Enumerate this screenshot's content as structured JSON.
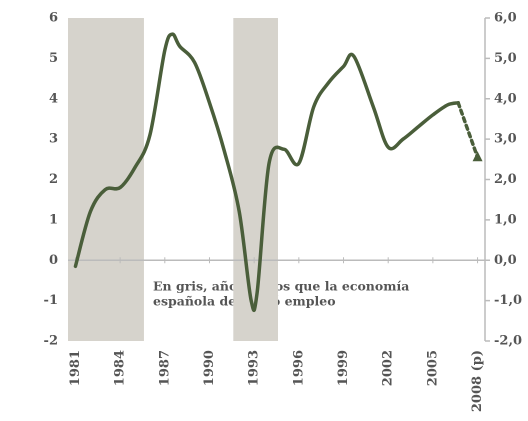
{
  "chart_data": {
    "type": "line",
    "annotation": [
      "En gris, años en los que la economía",
      "española destruyó empleo"
    ],
    "x": [
      1981,
      1982,
      1983,
      1984,
      1985,
      1986,
      1987,
      1987.5,
      1988,
      1989,
      1990,
      1991,
      1992,
      1992.8,
      1993.2,
      1994,
      1995,
      1996,
      1997,
      1998,
      1999,
      1999.7,
      2001,
      2002,
      2003,
      2004,
      2005,
      2006,
      2006.7,
      2008
    ],
    "series": [
      {
        "color": "#4a5e3a",
        "values": [
          -0.15,
          1.2,
          1.75,
          1.8,
          2.3,
          3.1,
          5.2,
          5.6,
          5.3,
          4.9,
          3.9,
          2.7,
          1.2,
          -1.0,
          -0.8,
          2.4,
          2.75,
          2.4,
          3.8,
          4.4,
          4.8,
          5.05,
          3.8,
          2.8,
          3.0,
          3.3,
          3.6,
          3.85,
          3.9,
          null
        ]
      },
      {
        "color": "#4a5e3a",
        "dashed": true,
        "values": [
          null,
          null,
          null,
          null,
          null,
          null,
          null,
          null,
          null,
          null,
          null,
          null,
          null,
          null,
          null,
          null,
          null,
          null,
          null,
          null,
          null,
          null,
          null,
          null,
          null,
          null,
          null,
          null,
          3.9,
          2.55
        ]
      }
    ],
    "shaded": [
      [
        1980.5,
        1985.6
      ],
      [
        1991.6,
        1994.6
      ]
    ],
    "shade_color": "#d6d3cc",
    "xlim": [
      1980.5,
      2008.5
    ],
    "xticks": [
      1981,
      1984,
      1987,
      1990,
      1993,
      1996,
      1999,
      2002,
      2005,
      {
        "value": 2008,
        "label": "2008 (p)"
      }
    ],
    "ylim": [
      -2,
      6
    ],
    "yticks": [
      -2,
      -1,
      0,
      1,
      2,
      3,
      4,
      5,
      6
    ],
    "y2lim": [
      -2,
      6
    ],
    "y2ticks": [
      {
        "value": -2,
        "label": "-2,0"
      },
      {
        "value": -1,
        "label": "-1,0"
      },
      {
        "value": 0,
        "label": "0,0"
      },
      {
        "value": 1,
        "label": "1,0"
      },
      {
        "value": 2,
        "label": "2,0"
      },
      {
        "value": 3,
        "label": "3,0"
      },
      {
        "value": 4,
        "label": "4,0"
      },
      {
        "value": 5,
        "label": "5,0"
      },
      {
        "value": 6,
        "label": "6,0"
      }
    ]
  }
}
